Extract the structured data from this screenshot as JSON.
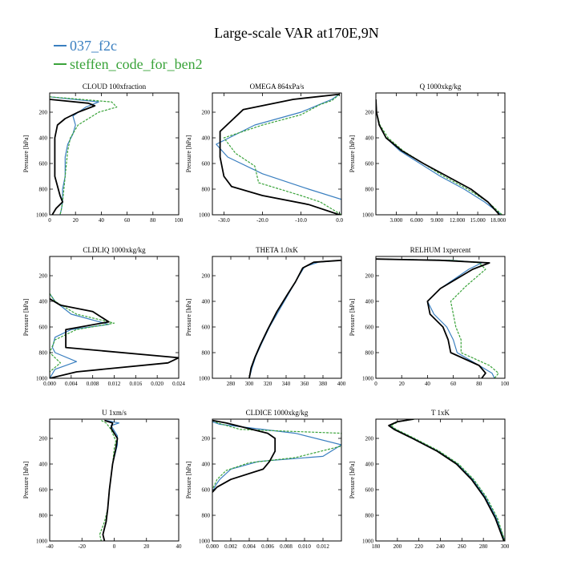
{
  "figure": {
    "title": "Large-scale VAR at170E,9N",
    "legend": [
      {
        "name": "037_f2c",
        "color": "#3a7fc0"
      },
      {
        "name": "steffen_code_for_ben2",
        "color": "#3aa33a"
      }
    ],
    "control_color": "#000000"
  },
  "chart_data": [
    {
      "type": "line",
      "title": "CLOUD 100xfraction",
      "ylabel": "Pressure [hPa]",
      "xlim": [
        0,
        100
      ],
      "ylim": [
        1000,
        50
      ],
      "xticks": [
        0,
        20,
        40,
        60,
        80,
        100
      ],
      "xtick_labels": [
        "0",
        "20",
        "40",
        "60",
        "80",
        "100"
      ],
      "yticks": [
        200,
        400,
        600,
        800,
        1000
      ],
      "ytick_labels": [
        "200",
        "400",
        "600",
        "800",
        "1000"
      ],
      "series": [
        {
          "name": "037_f2c",
          "x": [
            0,
            38,
            28,
            18,
            20,
            18,
            14,
            12,
            12,
            10,
            10,
            9,
            8
          ],
          "y": [
            80,
            120,
            160,
            230,
            300,
            370,
            450,
            550,
            700,
            800,
            900,
            960,
            1000
          ]
        },
        {
          "name": "steffen_code_for_ben2",
          "x": [
            0,
            48,
            52,
            38,
            22,
            16,
            14,
            12,
            11,
            10,
            9,
            8
          ],
          "y": [
            80,
            120,
            160,
            200,
            300,
            400,
            500,
            700,
            800,
            900,
            960,
            1000
          ]
        },
        {
          "x": [
            0,
            30,
            35,
            22,
            12,
            6,
            4,
            4,
            8,
            10,
            5,
            2
          ],
          "y": [
            100,
            130,
            150,
            200,
            250,
            300,
            400,
            700,
            850,
            900,
            950,
            1000
          ]
        }
      ]
    },
    {
      "type": "line",
      "title": "OMEGA 864xPa/s",
      "ylabel": "Pressure [hPa]",
      "xlim": [
        -33,
        0.5
      ],
      "ylim": [
        1000,
        50
      ],
      "xticks": [
        -30,
        -20,
        -10,
        0
      ],
      "xtick_labels": [
        "-30.0",
        "-20.0",
        "-10.0",
        "0.0"
      ],
      "yticks": [
        200,
        400,
        600,
        800,
        1000
      ],
      "ytick_labels": [
        "200",
        "400",
        "600",
        "800",
        "1000"
      ],
      "series": [
        {
          "name": "037_f2c",
          "x": [
            0,
            -2,
            -10,
            -22,
            -32,
            -29,
            -20,
            -8,
            0.5,
            0.5
          ],
          "y": [
            60,
            100,
            200,
            300,
            450,
            550,
            680,
            800,
            880,
            1000
          ]
        },
        {
          "name": "steffen_code_for_ben2",
          "x": [
            0,
            -2,
            -5,
            -10,
            -20,
            -30,
            -27,
            -22,
            -21,
            -10,
            -5,
            0.5
          ],
          "y": [
            60,
            110,
            140,
            220,
            300,
            400,
            520,
            620,
            750,
            850,
            900,
            1000
          ]
        },
        {
          "x": [
            0,
            -12,
            -25,
            -31,
            -31,
            -30,
            -28,
            -20,
            -8,
            0
          ],
          "y": [
            60,
            100,
            180,
            350,
            550,
            700,
            780,
            850,
            920,
            1000
          ]
        }
      ]
    },
    {
      "type": "line",
      "title": "Q 1000xkg/kg",
      "ylabel": "Pressure [hPa]",
      "xlim": [
        0,
        19
      ],
      "ylim": [
        1000,
        50
      ],
      "xticks": [
        3,
        6,
        9,
        12,
        15,
        18
      ],
      "xtick_labels": [
        "3.000",
        "6.000",
        "9.000",
        "12.000",
        "15.000",
        "18.000"
      ],
      "yticks": [
        200,
        400,
        600,
        800,
        1000
      ],
      "ytick_labels": [
        "200",
        "400",
        "600",
        "800",
        "1000"
      ],
      "series": [
        {
          "name": "037_f2c",
          "x": [
            0,
            0.1,
            0.5,
            1.5,
            3.5,
            6.5,
            9.5,
            13,
            16,
            18.5
          ],
          "y": [
            100,
            200,
            300,
            400,
            500,
            600,
            700,
            800,
            900,
            1000
          ]
        },
        {
          "name": "steffen_code_for_ben2",
          "x": [
            0,
            0.1,
            0.6,
            1.8,
            4,
            7,
            10,
            13.5,
            16.5,
            18.6
          ],
          "y": [
            100,
            200,
            300,
            400,
            500,
            600,
            700,
            800,
            900,
            1000
          ]
        },
        {
          "x": [
            0,
            0.1,
            0.5,
            1.5,
            3.8,
            7,
            10.5,
            14,
            16.5,
            18.2
          ],
          "y": [
            100,
            200,
            300,
            400,
            500,
            600,
            700,
            800,
            900,
            1000
          ]
        }
      ]
    },
    {
      "type": "line",
      "title": "CLDLIQ 1000xkg/kg",
      "ylabel": "Pressure [hPa]",
      "xlim": [
        0,
        0.024
      ],
      "ylim": [
        1000,
        50
      ],
      "xticks": [
        0,
        0.004,
        0.008,
        0.012,
        0.016,
        0.02,
        0.024
      ],
      "xtick_labels": [
        "0.000",
        "0.004",
        "0.008",
        "0.012",
        "0.016",
        "0.020",
        "0.024"
      ],
      "yticks": [
        200,
        400,
        600,
        800,
        1000
      ],
      "ytick_labels": [
        "200",
        "400",
        "600",
        "800",
        "1000"
      ],
      "series": [
        {
          "name": "037_f2c",
          "x": [
            0,
            0.001,
            0.004,
            0.011,
            0.004,
            0.001,
            0.0005,
            0.001,
            0.005,
            0.001,
            0
          ],
          "y": [
            340,
            400,
            500,
            580,
            620,
            680,
            760,
            800,
            870,
            930,
            1000
          ]
        },
        {
          "name": "steffen_code_for_ben2",
          "x": [
            0,
            0.001,
            0.005,
            0.012,
            0.005,
            0.001,
            0,
            0.002,
            0,
            0
          ],
          "y": [
            340,
            400,
            500,
            570,
            620,
            700,
            800,
            880,
            950,
            1000
          ]
        },
        {
          "x": [
            0,
            0.002,
            0.008,
            0.011,
            0.003,
            0.003,
            0.024,
            0.022,
            0.005,
            0
          ],
          "y": [
            380,
            430,
            480,
            560,
            620,
            760,
            840,
            880,
            950,
            1000
          ]
        }
      ]
    },
    {
      "type": "line",
      "title": "THETA 1.0xK",
      "ylabel": "Pressure [hPa]",
      "xlim": [
        260,
        400
      ],
      "ylim": [
        1000,
        50
      ],
      "xticks": [
        280,
        300,
        320,
        340,
        360,
        380,
        400
      ],
      "xtick_labels": [
        "280",
        "300",
        "320",
        "340",
        "360",
        "380",
        "400"
      ],
      "yticks": [
        200,
        400,
        600,
        800,
        1000
      ],
      "ytick_labels": [
        "200",
        "400",
        "600",
        "800",
        "1000"
      ],
      "series": [
        {
          "name": "037_f2c",
          "x": [
            400,
            375,
            360,
            354,
            346,
            334,
            322,
            314,
            307,
            303,
            300
          ],
          "y": [
            80,
            95,
            130,
            200,
            300,
            450,
            600,
            720,
            830,
            920,
            1000
          ]
        },
        {
          "name": "steffen_code_for_ben2",
          "x": [
            400,
            370,
            358,
            350,
            342,
            330,
            320,
            312,
            306,
            302,
            300
          ],
          "y": [
            80,
            95,
            140,
            250,
            340,
            480,
            620,
            740,
            840,
            920,
            1000
          ]
        },
        {
          "x": [
            400,
            370,
            358,
            350,
            342,
            330,
            320,
            312,
            306,
            302,
            300
          ],
          "y": [
            80,
            95,
            140,
            250,
            340,
            480,
            620,
            740,
            840,
            920,
            1000
          ]
        }
      ]
    },
    {
      "type": "line",
      "title": "RELHUM 1xpercent",
      "ylabel": "Pressure [hPa]",
      "xlim": [
        0,
        100
      ],
      "ylim": [
        1000,
        50
      ],
      "xticks": [
        0,
        20,
        40,
        60,
        80,
        100
      ],
      "xtick_labels": [
        "0",
        "20",
        "40",
        "60",
        "80",
        "100"
      ],
      "yticks": [
        200,
        400,
        600,
        800,
        1000
      ],
      "ytick_labels": [
        "200",
        "400",
        "600",
        "800",
        "1000"
      ],
      "series": [
        {
          "name": "037_f2c",
          "x": [
            0,
            60,
            82,
            72,
            50,
            40,
            45,
            55,
            60,
            63,
            80,
            90,
            92
          ],
          "y": [
            70,
            80,
            100,
            150,
            300,
            400,
            500,
            600,
            700,
            800,
            900,
            960,
            1000
          ]
        },
        {
          "name": "steffen_code_for_ben2",
          "x": [
            0,
            60,
            80,
            85,
            70,
            58,
            62,
            66,
            66,
            88,
            95,
            92
          ],
          "y": [
            70,
            80,
            100,
            150,
            280,
            400,
            600,
            700,
            800,
            900,
            960,
            1000
          ]
        },
        {
          "x": [
            0,
            50,
            88,
            75,
            50,
            40,
            42,
            52,
            56,
            58,
            80,
            85,
            82
          ],
          "y": [
            70,
            80,
            100,
            150,
            300,
            400,
            500,
            600,
            700,
            800,
            900,
            960,
            1000
          ]
        }
      ]
    },
    {
      "type": "line",
      "title": "U 1xm/s",
      "ylabel": "Pressure [hPa]",
      "xlim": [
        -40,
        40
      ],
      "ylim": [
        1000,
        50
      ],
      "xticks": [
        -40,
        -20,
        0,
        20,
        40
      ],
      "xtick_labels": [
        "-40",
        "-20",
        "0",
        "20",
        "40"
      ],
      "yticks": [
        200,
        400,
        600,
        800,
        1000
      ],
      "ytick_labels": [
        "200",
        "400",
        "600",
        "800",
        "1000"
      ],
      "series": [
        {
          "name": "037_f2c",
          "x": [
            -5,
            3,
            -2,
            2,
            2,
            -1,
            -3,
            -4,
            -5,
            -7,
            -6
          ],
          "y": [
            60,
            80,
            100,
            180,
            250,
            400,
            600,
            750,
            850,
            950,
            1000
          ]
        },
        {
          "name": "steffen_code_for_ben2",
          "x": [
            -8,
            -5,
            -2,
            1,
            0,
            -1,
            -3,
            -4,
            -6,
            -9,
            -8
          ],
          "y": [
            60,
            80,
            130,
            220,
            280,
            400,
            600,
            750,
            850,
            950,
            1000
          ]
        },
        {
          "x": [
            -6,
            -1,
            -2,
            2,
            1,
            -1,
            -3,
            -4,
            -5,
            -7,
            -6
          ],
          "y": [
            60,
            80,
            120,
            200,
            280,
            400,
            600,
            750,
            850,
            950,
            1000
          ]
        }
      ]
    },
    {
      "type": "line",
      "title": "CLDICE 1000xkg/kg",
      "ylabel": "Pressure [hPa]",
      "xlim": [
        0,
        0.014
      ],
      "ylim": [
        1000,
        50
      ],
      "xticks": [
        0,
        0.002,
        0.004,
        0.006,
        0.008,
        0.01,
        0.012
      ],
      "xtick_labels": [
        "0.000",
        "0.002",
        "0.004",
        "0.006",
        "0.008",
        "0.010",
        "0.012"
      ],
      "yticks": [
        200,
        400,
        600,
        800,
        1000
      ],
      "ytick_labels": [
        "200",
        "400",
        "600",
        "800",
        "1000"
      ],
      "series": [
        {
          "name": "037_f2c",
          "x": [
            0,
            0.0008,
            0.009,
            0.014,
            0.012,
            0.005,
            0.002,
            0.0008,
            0.0004,
            0
          ],
          "y": [
            70,
            90,
            160,
            250,
            340,
            380,
            440,
            520,
            560,
            620
          ]
        },
        {
          "name": "steffen_code_for_ben2",
          "x": [
            0,
            0.0006,
            0.003,
            0.014,
            0.014,
            0.009,
            0.004,
            0.0015,
            0.0005,
            0
          ],
          "y": [
            60,
            80,
            130,
            160,
            260,
            350,
            390,
            450,
            520,
            600
          ]
        },
        {
          "x": [
            0,
            0.0015,
            0.006,
            0.0068,
            0.0068,
            0.0062,
            0.0055,
            0.002,
            0.0005,
            0
          ],
          "y": [
            60,
            80,
            160,
            200,
            300,
            380,
            440,
            520,
            580,
            620
          ]
        }
      ]
    },
    {
      "type": "line",
      "title": "T 1xK",
      "ylabel": "Pressure [hPa]",
      "xlim": [
        180,
        300
      ],
      "ylim": [
        1000,
        50
      ],
      "xticks": [
        180,
        200,
        220,
        240,
        260,
        280,
        300
      ],
      "xtick_labels": [
        "180",
        "200",
        "220",
        "240",
        "260",
        "280",
        "300"
      ],
      "yticks": [
        200,
        400,
        600,
        800,
        1000
      ],
      "ytick_labels": [
        "200",
        "400",
        "600",
        "800",
        "1000"
      ],
      "series": [
        {
          "name": "037_f2c",
          "x": [
            215,
            200,
            193,
            198,
            215,
            238,
            256,
            270,
            282,
            292,
            300
          ],
          "y": [
            50,
            70,
            100,
            130,
            200,
            300,
            400,
            520,
            660,
            820,
            1000
          ]
        },
        {
          "name": "steffen_code_for_ben2",
          "x": [
            216,
            201,
            194,
            199,
            216,
            239,
            257,
            271,
            283,
            293,
            300
          ],
          "y": [
            50,
            70,
            100,
            130,
            200,
            300,
            400,
            520,
            660,
            820,
            1000
          ]
        },
        {
          "x": [
            215,
            200,
            192,
            197,
            214,
            237,
            255,
            269,
            281,
            291,
            299
          ],
          "y": [
            50,
            70,
            100,
            130,
            200,
            300,
            400,
            520,
            660,
            820,
            1000
          ]
        }
      ]
    }
  ]
}
